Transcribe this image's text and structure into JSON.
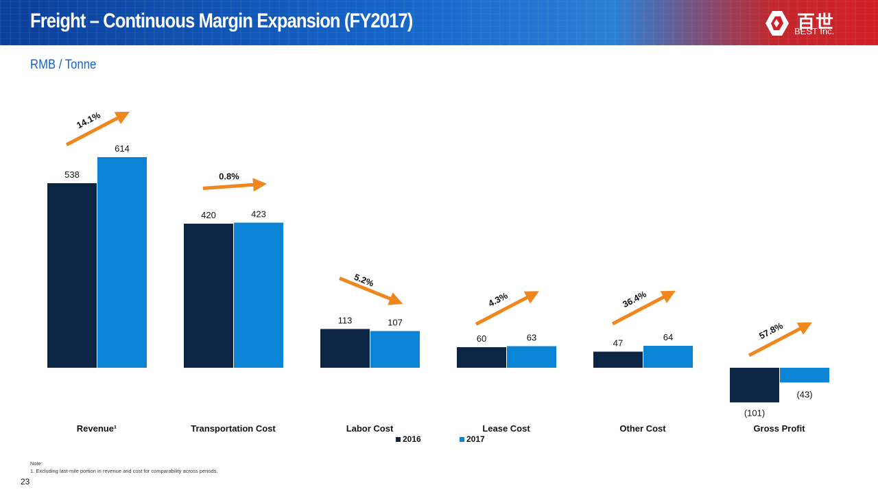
{
  "header": {
    "title": "Freight – Continuous Margin Expansion (FY2017)",
    "logo_cn": "百世",
    "logo_en": "BEST Inc."
  },
  "subtitle": "RMB / Tonne",
  "colors": {
    "series_2016": "#0c2544",
    "series_2017": "#0b84d6",
    "arrow": "#f0861e"
  },
  "chart_data": {
    "type": "bar",
    "categories": [
      "Revenue¹",
      "Transportation Cost",
      "Labor Cost",
      "Lease Cost",
      "Other Cost",
      "Gross Profit"
    ],
    "series": [
      {
        "name": "2016",
        "values": [
          538,
          420,
          113,
          60,
          47,
          -101
        ]
      },
      {
        "name": "2017",
        "values": [
          614,
          423,
          107,
          63,
          64,
          -43
        ]
      }
    ],
    "data_labels": {
      "2016": [
        "538",
        "420",
        "113",
        "60",
        "47",
        "(101)"
      ],
      "2017": [
        "614",
        "423",
        "107",
        "63",
        "64",
        "(43)"
      ]
    },
    "changes": [
      "14.1%",
      "0.8%",
      "5.2%",
      "4.3%",
      "36.4%",
      "57.8%"
    ],
    "change_directions": [
      "up",
      "flat",
      "down",
      "up",
      "up",
      "up"
    ],
    "ylim": [
      -101,
      614
    ],
    "legend_placement": "bottom",
    "grid": false
  },
  "note": {
    "heading": "Note:",
    "line1": "1. Excluding last-mile portion in revenue and cost for comparability across periods."
  },
  "page_number": "23"
}
